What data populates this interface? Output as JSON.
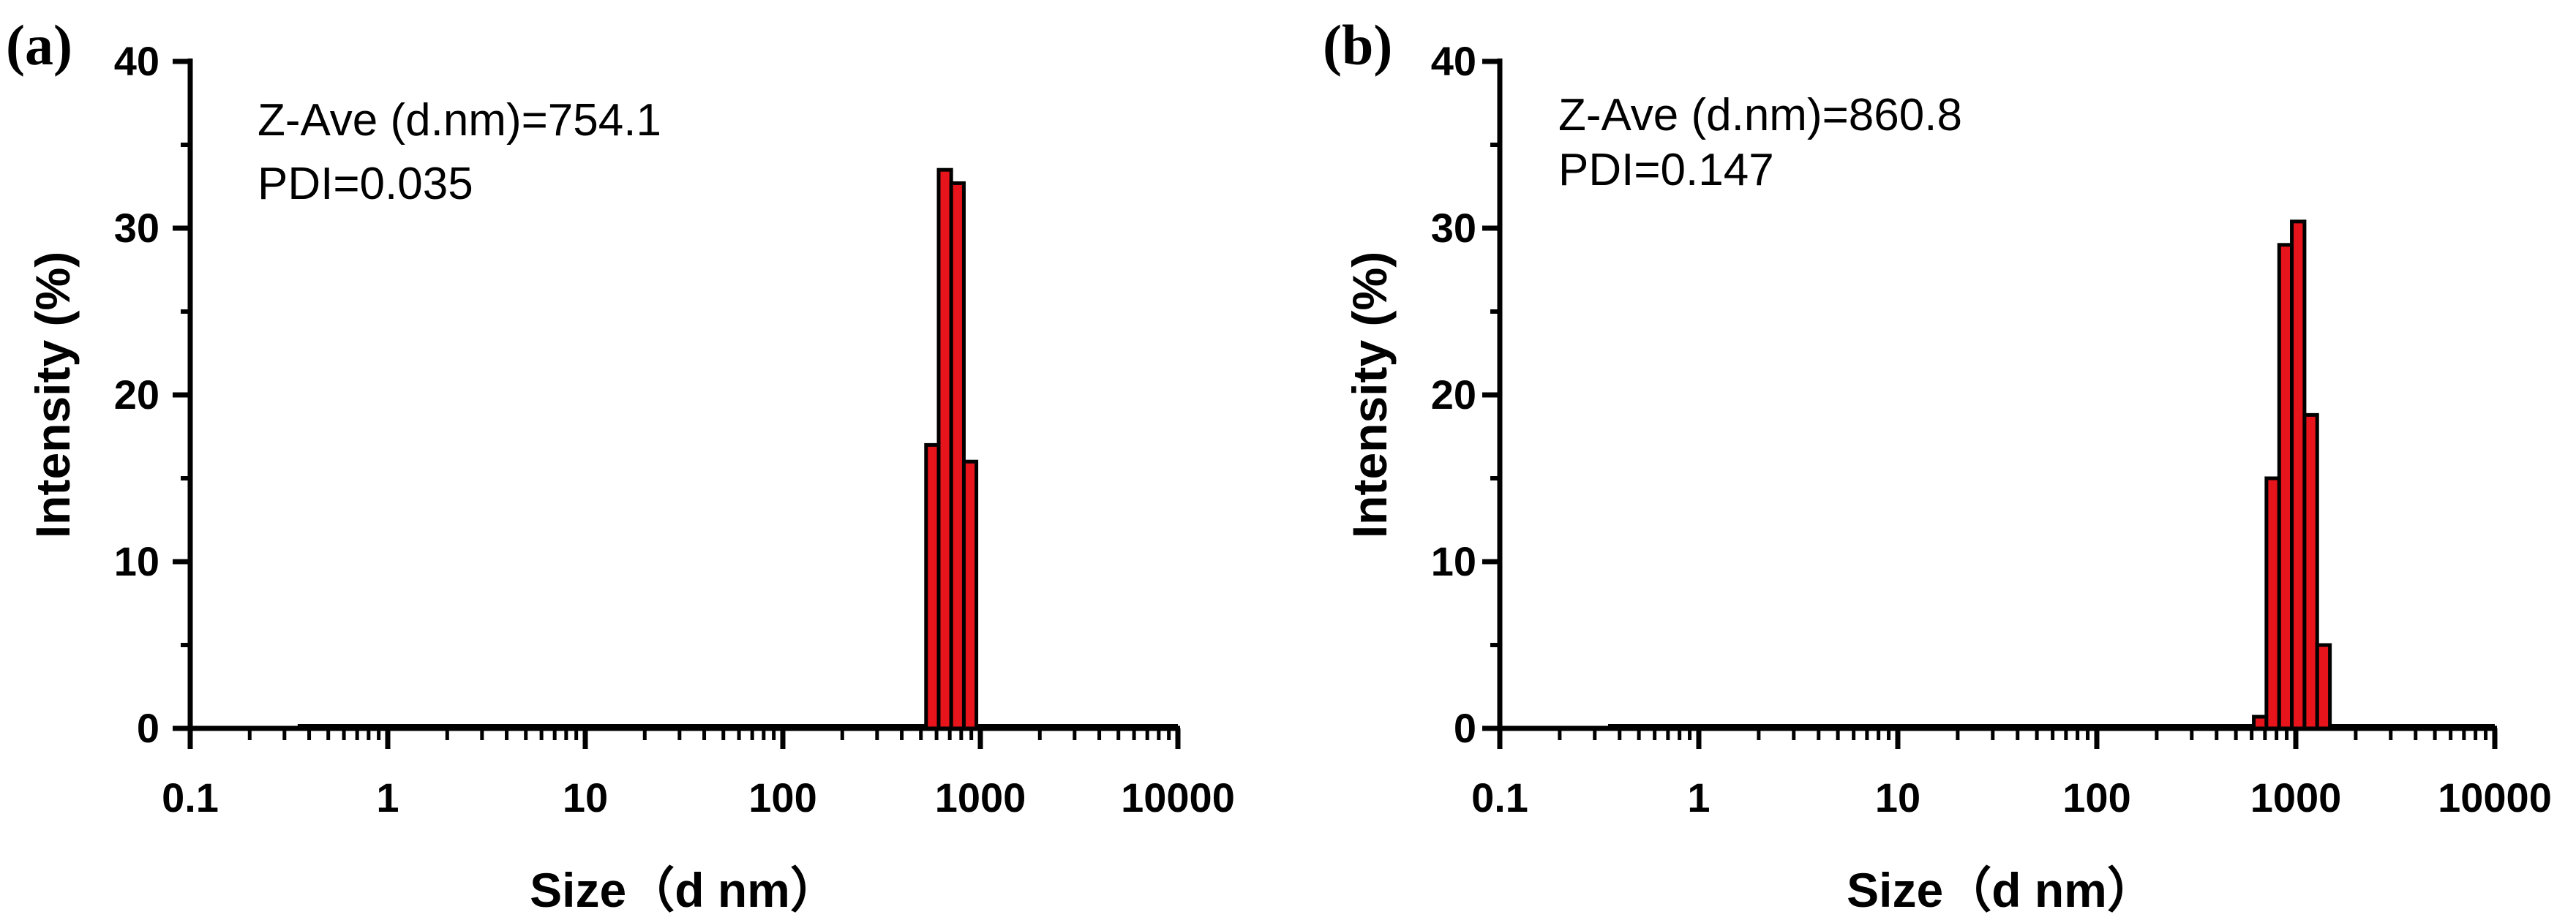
{
  "figure": {
    "panels": [
      {
        "panel_label": "(a)",
        "annotations": [
          "Z-Ave (d.nm)=754.1",
          "PDI=0.035"
        ],
        "xlabel": "Size（d nm）",
        "ylabel": "Intensity (%)",
        "x_tick_labels": [
          "0.1",
          "1",
          "10",
          "100",
          "1000",
          "10000"
        ],
        "y_tick_labels": [
          "0",
          "10",
          "20",
          "30",
          "40"
        ]
      },
      {
        "panel_label": "(b)",
        "annotations": [
          "Z-Ave (d.nm)=860.8",
          "PDI=0.147"
        ],
        "xlabel": "Size（d nm）",
        "ylabel": "Intensity (%)",
        "x_tick_labels": [
          "0.1",
          "1",
          "10",
          "100",
          "1000",
          "10000"
        ],
        "y_tick_labels": [
          "0",
          "10",
          "20",
          "30",
          "40"
        ]
      }
    ]
  },
  "chart_data": [
    {
      "type": "bar",
      "panel": "(a)",
      "xlabel": "Size（d nm）",
      "ylabel": "Intensity (%)",
      "x_scale": "log",
      "xlim": [
        0.1,
        10000
      ],
      "ylim": [
        0,
        40
      ],
      "grid": false,
      "bar_color": "#e8141b",
      "bar_edge_color": "#000000",
      "bin_edges": [
        531,
        615,
        712,
        825,
        955
      ],
      "values": [
        17.0,
        33.5,
        32.7,
        16.0
      ],
      "baseline_range": [
        0.35,
        10000
      ]
    },
    {
      "type": "bar",
      "panel": "(b)",
      "xlabel": "Size（d nm）",
      "ylabel": "Intensity (%)",
      "x_scale": "log",
      "xlim": [
        0.1,
        10000
      ],
      "ylim": [
        0,
        40
      ],
      "grid": false,
      "bar_color": "#e8141b",
      "bar_edge_color": "#000000",
      "bin_edges": [
        615,
        712,
        825,
        955,
        1106,
        1281,
        1484
      ],
      "values": [
        0.7,
        15.0,
        29.0,
        30.4,
        18.8,
        5.0
      ],
      "baseline_range": [
        0.35,
        10000
      ]
    }
  ]
}
